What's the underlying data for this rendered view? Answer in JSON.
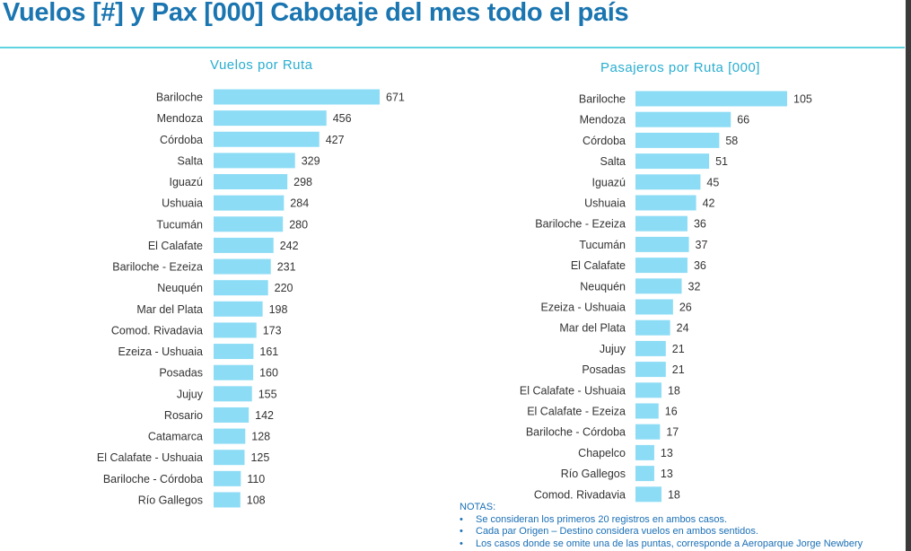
{
  "page_title": "Vuelos [#] y Pax [000] Cabotaje del mes todo el país",
  "colors": {
    "title": "#1a75b0",
    "bar": "#8ddcf5",
    "chart_title": "#29aed0",
    "divider": "#5fd3e0"
  },
  "chart_data": [
    {
      "type": "bar",
      "orientation": "horizontal",
      "title": "Vuelos por Ruta",
      "categories": [
        "Bariloche",
        "Mendoza",
        "Córdoba",
        "Salta",
        "Iguazú",
        "Ushuaia",
        "Tucumán",
        "El Calafate",
        "Bariloche - Ezeiza",
        "Neuquén",
        "Mar del Plata",
        "Comod. Rivadavia",
        "Ezeiza - Ushuaia",
        "Posadas",
        "Jujuy",
        "Rosario",
        "Catamarca",
        "El Calafate - Ushuaia",
        "Bariloche - Córdoba",
        "Río Gallegos"
      ],
      "values": [
        671,
        456,
        427,
        329,
        298,
        284,
        280,
        242,
        231,
        220,
        198,
        173,
        161,
        160,
        155,
        142,
        128,
        125,
        110,
        108
      ],
      "grid": false
    },
    {
      "type": "bar",
      "orientation": "horizontal",
      "title": "Pasajeros por Ruta [000]",
      "categories": [
        "Bariloche",
        "Mendoza",
        "Córdoba",
        "Salta",
        "Iguazú",
        "Ushuaia",
        "Bariloche - Ezeiza",
        "Tucumán",
        "El Calafate",
        "Neuquén",
        "Ezeiza - Ushuaia",
        "Mar del Plata",
        "Jujuy",
        "Posadas",
        "El Calafate - Ushuaia",
        "El Calafate - Ezeiza",
        "Bariloche - Córdoba",
        "Chapelco",
        "Río Gallegos",
        "Comod. Rivadavia"
      ],
      "values": [
        105,
        66,
        58,
        51,
        45,
        42,
        36,
        37,
        36,
        32,
        26,
        24,
        21,
        21,
        18,
        16,
        17,
        13,
        13,
        18
      ],
      "grid": false
    }
  ],
  "notes": {
    "heading": "NOTAS:",
    "items": [
      "Se consideran los primeros 20 registros en ambos casos.",
      "Cada par Origen – Destino considera vuelos en ambos sentidos.",
      "Los casos donde se omite una de las puntas, corresponde a Aeroparque Jorge Newbery"
    ]
  }
}
